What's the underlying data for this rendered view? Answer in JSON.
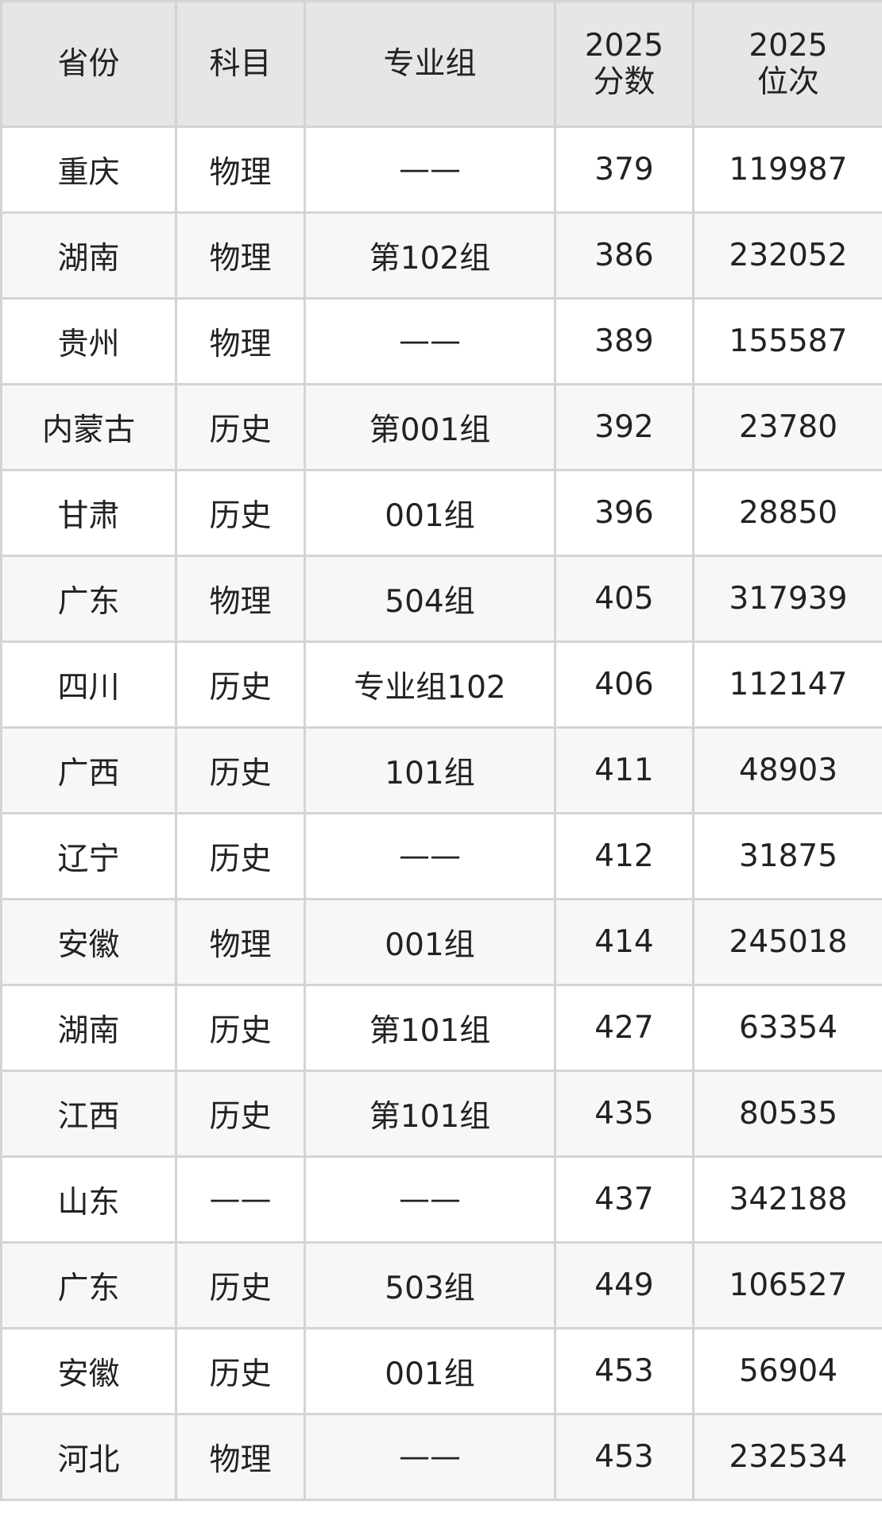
{
  "headers": [
    "省份",
    "科目",
    "专业组",
    "2025\n分数",
    "2025\n位次"
  ],
  "header_lines": [
    [
      "省份"
    ],
    [
      "科目"
    ],
    [
      "专业组"
    ],
    [
      "2025",
      "分数"
    ],
    [
      "2025",
      "位次"
    ]
  ],
  "rows": [
    [
      "重庆",
      "物理",
      "——",
      "379",
      "119987"
    ],
    [
      "湖南",
      "物理",
      "第102组",
      "386",
      "232052"
    ],
    [
      "贵州",
      "物理",
      "——",
      "389",
      "155587"
    ],
    [
      "内蒙古",
      "历史",
      "第001组",
      "392",
      "23780"
    ],
    [
      "甘肃",
      "历史",
      "001组",
      "396",
      "28850"
    ],
    [
      "广东",
      "物理",
      "504组",
      "405",
      "317939"
    ],
    [
      "四川",
      "历史",
      "专业组102",
      "406",
      "112147"
    ],
    [
      "广西",
      "历史",
      "101组",
      "411",
      "48903"
    ],
    [
      "辽宁",
      "历史",
      "——",
      "412",
      "31875"
    ],
    [
      "安徽",
      "物理",
      "001组",
      "414",
      "245018"
    ],
    [
      "湖南",
      "历史",
      "第101组",
      "427",
      "63354"
    ],
    [
      "江西",
      "历史",
      "第101组",
      "435",
      "80535"
    ],
    [
      "山东",
      "——",
      "——",
      "437",
      "342188"
    ],
    [
      "广东",
      "历史",
      "503组",
      "449",
      "106527"
    ],
    [
      "安徽",
      "历史",
      "001组",
      "453",
      "56904"
    ],
    [
      "河北",
      "物理",
      "——",
      "453",
      "232534"
    ]
  ],
  "colors": {
    "header_bg": "#e6e6e6",
    "alt_row_bg": "#f7f7f7",
    "border": "#d4d4d4"
  }
}
